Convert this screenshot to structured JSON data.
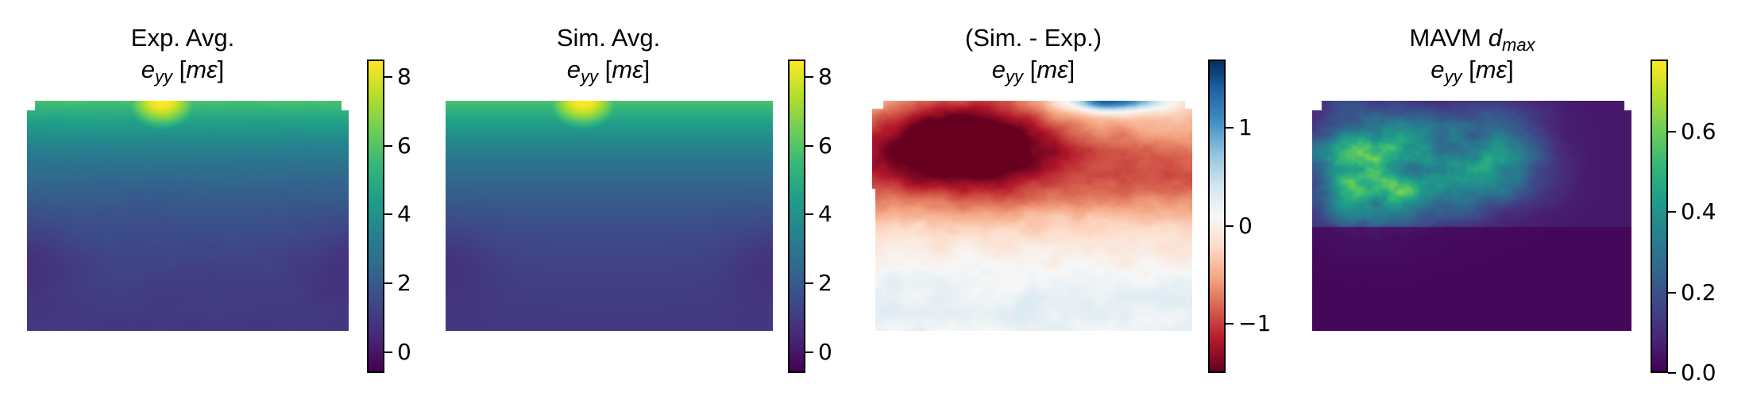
{
  "chart_data": [
    {
      "type": "heatmap",
      "title_line1": "Exp. Avg.",
      "title_line2": "e_yy [mε]",
      "colormap": "viridis",
      "colorbar_range": [
        -0.6,
        8.5
      ],
      "colorbar_ticks": [
        0,
        2,
        4,
        6,
        8
      ],
      "colorbar_tick_labels": [
        "0",
        "2",
        "4",
        "6",
        "8"
      ]
    },
    {
      "type": "heatmap",
      "title_line1": "Sim. Avg.",
      "title_line2": "e_yy [mε]",
      "colormap": "viridis",
      "colorbar_range": [
        -0.6,
        8.5
      ],
      "colorbar_ticks": [
        0,
        2,
        4,
        6,
        8
      ],
      "colorbar_tick_labels": [
        "0",
        "2",
        "4",
        "6",
        "8"
      ]
    },
    {
      "type": "heatmap",
      "title_line1": "(Sim. - Exp.)",
      "title_line2": "e_yy [mε]",
      "colormap": "RdBu",
      "colorbar_range": [
        -1.5,
        1.7
      ],
      "colorbar_ticks": [
        -1,
        0,
        1
      ],
      "colorbar_tick_labels": [
        "−1",
        "0",
        "1"
      ]
    },
    {
      "type": "heatmap",
      "title_line1": "MAVM d_max",
      "title_line2": "e_yy [mε]",
      "colormap": "viridis",
      "colorbar_range": [
        0.0,
        0.78
      ],
      "colorbar_ticks": [
        0.0,
        0.2,
        0.4,
        0.6
      ],
      "colorbar_tick_labels": [
        "0.0",
        "0.2",
        "0.4",
        "0.6"
      ]
    }
  ],
  "colors": {
    "viridis": [
      "#440154",
      "#482878",
      "#3e4989",
      "#31688e",
      "#26828e",
      "#1f9e89",
      "#35b779",
      "#6ece58",
      "#b5de2b",
      "#fde725"
    ],
    "rdbu": [
      "#67001f",
      "#b2182b",
      "#d6604d",
      "#f4a582",
      "#fddbc7",
      "#f7f7f7",
      "#d1e5f0",
      "#92c5de",
      "#4393c3",
      "#2166ac",
      "#053061"
    ]
  }
}
